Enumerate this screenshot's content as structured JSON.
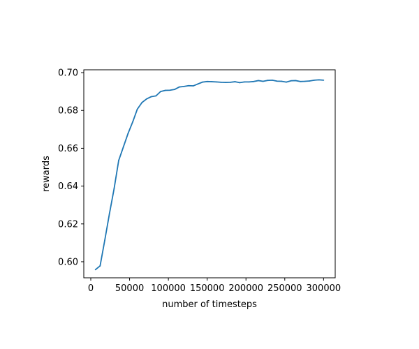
{
  "chart_data": {
    "type": "line",
    "xlabel": "number of timesteps",
    "ylabel": "rewards",
    "xlim": [
      -9000,
      315000
    ],
    "ylim": [
      0.5915,
      0.7015
    ],
    "xticks": [
      0,
      50000,
      100000,
      150000,
      200000,
      250000,
      300000
    ],
    "xtick_labels": [
      "0",
      "50000",
      "100000",
      "150000",
      "200000",
      "250000",
      "300000"
    ],
    "yticks": [
      0.6,
      0.62,
      0.64,
      0.66,
      0.68,
      0.7
    ],
    "ytick_labels": [
      "0.60",
      "0.62",
      "0.64",
      "0.66",
      "0.68",
      "0.70"
    ],
    "grid": false,
    "line_color": "#1f77b4",
    "series": [
      {
        "x": [
          6000,
          12000,
          18000,
          24000,
          30000,
          36000,
          42000,
          48000,
          54000,
          60000,
          66000,
          72000,
          78000,
          84000,
          90000,
          96000,
          102000,
          108000,
          114000,
          120000,
          126000,
          132000,
          138000,
          144000,
          150000,
          156000,
          162000,
          168000,
          174000,
          180000,
          186000,
          192000,
          198000,
          204000,
          210000,
          216000,
          222000,
          228000,
          234000,
          240000,
          246000,
          252000,
          258000,
          264000,
          270000,
          276000,
          282000,
          288000,
          294000,
          300000
        ],
        "y": [
          0.5958,
          0.5978,
          0.6113,
          0.6253,
          0.6385,
          0.6536,
          0.6607,
          0.6678,
          0.6739,
          0.6807,
          0.6842,
          0.6861,
          0.6873,
          0.6877,
          0.69,
          0.6906,
          0.6907,
          0.6911,
          0.6924,
          0.6927,
          0.6931,
          0.693,
          0.694,
          0.695,
          0.6953,
          0.6952,
          0.6951,
          0.6949,
          0.6948,
          0.6949,
          0.6952,
          0.6947,
          0.6951,
          0.6951,
          0.6953,
          0.6958,
          0.6954,
          0.6959,
          0.696,
          0.6955,
          0.6954,
          0.695,
          0.6957,
          0.6958,
          0.6953,
          0.6954,
          0.6956,
          0.696,
          0.6962,
          0.696
        ]
      }
    ]
  }
}
